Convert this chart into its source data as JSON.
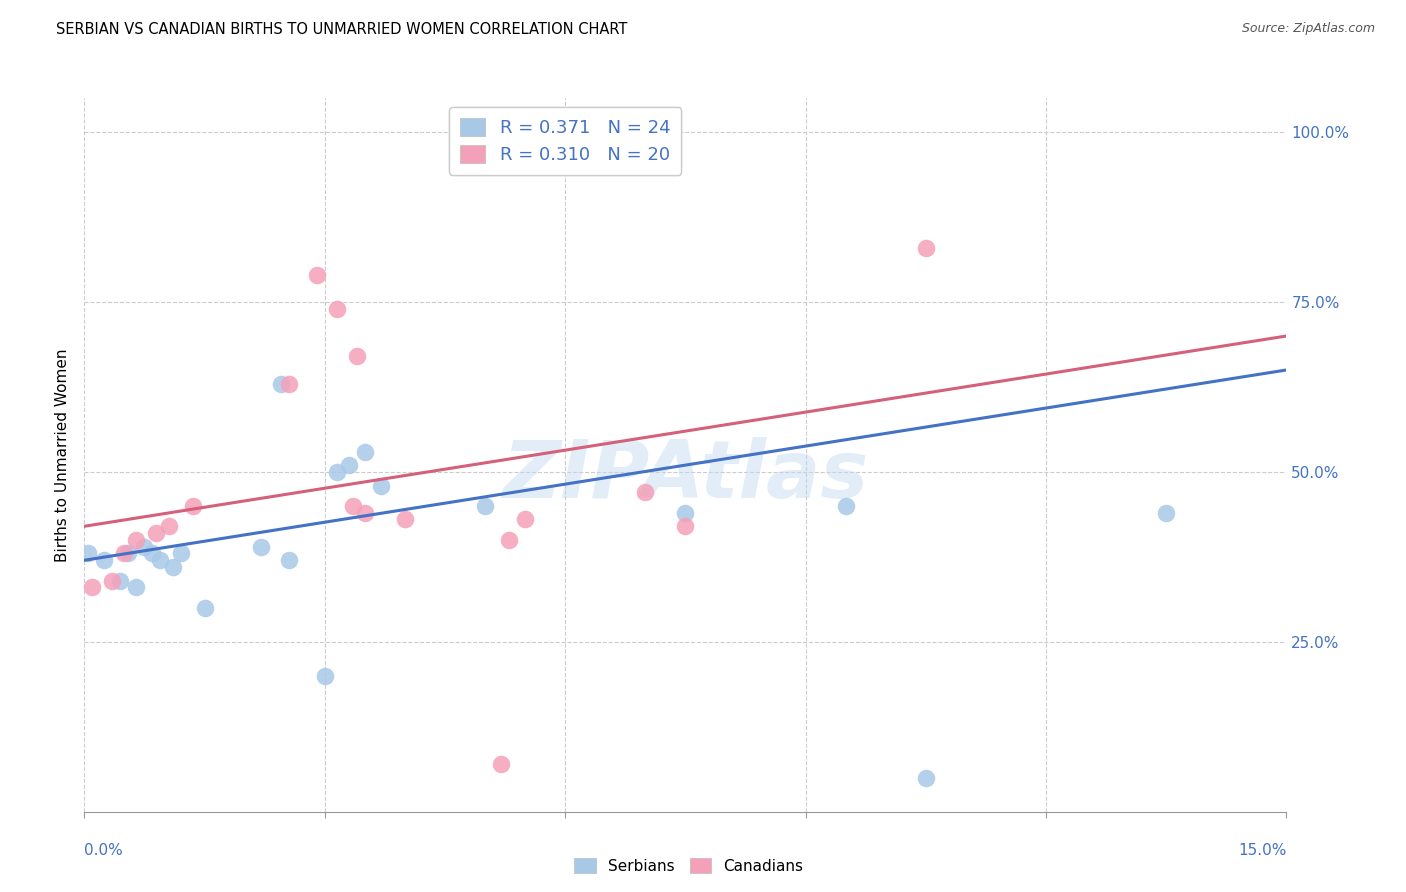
{
  "title": "SERBIAN VS CANADIAN BIRTHS TO UNMARRIED WOMEN CORRELATION CHART",
  "source": "Source: ZipAtlas.com",
  "ylabel": "Births to Unmarried Women",
  "xlim": [
    0.0,
    15.0
  ],
  "ylim": [
    0.0,
    105.0
  ],
  "ytick_values": [
    25.0,
    50.0,
    75.0,
    100.0
  ],
  "serbian_color": "#a8c8e8",
  "canadian_color": "#f4a0b8",
  "serbian_line_color": "#4472c4",
  "canadian_line_color": "#d4607a",
  "watermark": "ZIPAtlas",
  "serbian_R": "0.371",
  "serbian_N": "24",
  "canadian_R": "0.310",
  "canadian_N": "20",
  "serbian_x": [
    0.05,
    0.25,
    0.45,
    0.55,
    0.65,
    0.75,
    0.85,
    0.95,
    1.1,
    1.2,
    1.5,
    2.2,
    2.45,
    2.55,
    3.0,
    3.15,
    3.3,
    3.5,
    3.7,
    5.0,
    7.5,
    9.5,
    10.5,
    13.5
  ],
  "serbian_y": [
    38,
    37,
    34,
    38,
    33,
    39,
    38,
    37,
    36,
    38,
    30,
    39,
    63,
    37,
    20,
    50,
    51,
    53,
    48,
    45,
    44,
    45,
    5,
    44
  ],
  "canadian_x": [
    0.1,
    0.35,
    0.5,
    0.65,
    0.9,
    1.05,
    1.35,
    2.55,
    2.9,
    3.15,
    3.35,
    3.5,
    4.0,
    5.2,
    5.5,
    7.0,
    7.5,
    10.5,
    5.3,
    3.4
  ],
  "canadian_y": [
    33,
    34,
    38,
    40,
    41,
    42,
    45,
    63,
    79,
    74,
    45,
    44,
    43,
    7,
    43,
    47,
    42,
    83,
    40,
    67
  ],
  "serbian_line_x0": 0.0,
  "serbian_line_y0": 37.0,
  "serbian_line_x1": 15.0,
  "serbian_line_y1": 65.0,
  "canadian_line_x0": 0.0,
  "canadian_line_y0": 42.0,
  "canadian_line_x1": 15.0,
  "canadian_line_y1": 70.0,
  "marker_size": 160,
  "background_color": "#ffffff",
  "grid_color": "#cccccc",
  "axis_label_color": "#4472c4",
  "xtick_positions": [
    0.0,
    3.0,
    6.0,
    9.0,
    12.0,
    15.0
  ]
}
